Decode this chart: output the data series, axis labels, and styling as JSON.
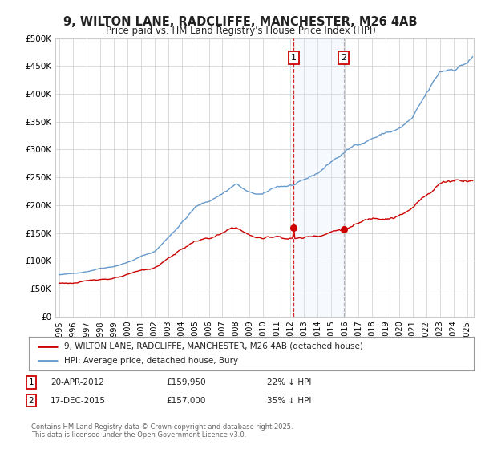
{
  "title": "9, WILTON LANE, RADCLIFFE, MANCHESTER, M26 4AB",
  "subtitle": "Price paid vs. HM Land Registry's House Price Index (HPI)",
  "legend_property": "9, WILTON LANE, RADCLIFFE, MANCHESTER, M26 4AB (detached house)",
  "legend_hpi": "HPI: Average price, detached house, Bury",
  "property_color": "#cc0000",
  "hpi_color": "#6699cc",
  "background_color": "#ffffff",
  "grid_color": "#cccccc",
  "shade_color": "#ddeeff",
  "marker1_price": 159950,
  "marker2_price": 157000,
  "footer": "Contains HM Land Registry data © Crown copyright and database right 2025.\nThis data is licensed under the Open Government Licence v3.0.",
  "ylim": [
    0,
    500000
  ],
  "xlim_start": 1994.7,
  "xlim_end": 2025.5,
  "yticks": [
    0,
    50000,
    100000,
    150000,
    200000,
    250000,
    300000,
    350000,
    400000,
    450000,
    500000
  ],
  "ytick_labels": [
    "£0",
    "£50K",
    "£100K",
    "£150K",
    "£200K",
    "£250K",
    "£300K",
    "£350K",
    "£400K",
    "£450K",
    "£500K"
  ],
  "xtick_years": [
    1995,
    1996,
    1997,
    1998,
    1999,
    2000,
    2001,
    2002,
    2003,
    2004,
    2005,
    2006,
    2007,
    2008,
    2009,
    2010,
    2011,
    2012,
    2013,
    2014,
    2015,
    2016,
    2017,
    2018,
    2019,
    2020,
    2021,
    2022,
    2023,
    2024,
    2025
  ]
}
